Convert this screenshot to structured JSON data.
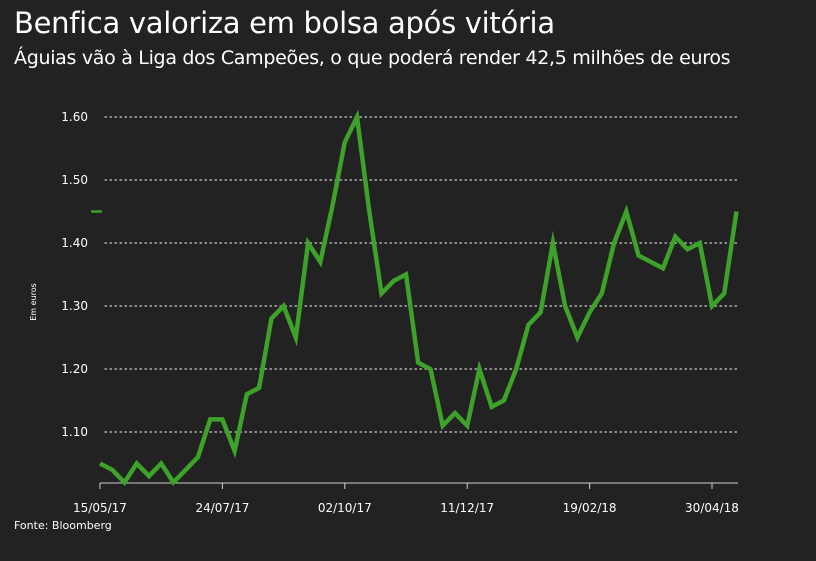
{
  "header": {
    "title": "Benfica valoriza em bolsa após vitória",
    "subtitle": "Águias vão à Liga dos Campeões, o que poderá render 42,5 milhões de euros"
  },
  "footer": {
    "source": "Fonte: Bloomberg"
  },
  "colors": {
    "background": "#222222",
    "line": "#3ea12a",
    "grid": "#cfcfcf",
    "text": "#ffffff"
  },
  "chart_data": {
    "type": "line",
    "title": "Benfica valoriza em bolsa após vitória",
    "subtitle": "Águias vão à Liga dos Campeões, o que poderá render 42,5 milhões de euros",
    "xlabel": "",
    "ylabel": "Em euros",
    "ylim": [
      1.02,
      1.62
    ],
    "yticks": [
      {
        "value": 1.1,
        "label": "1.10"
      },
      {
        "value": 1.2,
        "label": "1.20"
      },
      {
        "value": 1.3,
        "label": "1.30"
      },
      {
        "value": 1.4,
        "label": "1.40"
      },
      {
        "value": 1.5,
        "label": "1.50"
      },
      {
        "value": 1.6,
        "label": "1.60"
      }
    ],
    "xticks": [
      {
        "date": "2017-05-15",
        "label": "15/05/17"
      },
      {
        "date": "2017-07-24",
        "label": "24/07/17"
      },
      {
        "date": "2017-10-02",
        "label": "02/10/17"
      },
      {
        "date": "2017-12-11",
        "label": "11/12/17"
      },
      {
        "date": "2018-02-19",
        "label": "19/02/18"
      },
      {
        "date": "2018-04-30",
        "label": "30/04/18"
      }
    ],
    "grid": true,
    "legend": "none",
    "last_value_marker": 1.45,
    "series": [
      {
        "x": [
          "2017-05-15",
          "2017-05-22",
          "2017-05-29",
          "2017-06-05",
          "2017-06-12",
          "2017-06-19",
          "2017-06-26",
          "2017-07-03",
          "2017-07-10",
          "2017-07-17",
          "2017-07-24",
          "2017-07-31",
          "2017-08-07",
          "2017-08-14",
          "2017-08-21",
          "2017-08-28",
          "2017-09-04",
          "2017-09-11",
          "2017-09-18",
          "2017-09-25",
          "2017-10-02",
          "2017-10-09",
          "2017-10-16",
          "2017-10-23",
          "2017-10-30",
          "2017-11-06",
          "2017-11-13",
          "2017-11-20",
          "2017-11-27",
          "2017-12-04",
          "2017-12-11",
          "2017-12-18",
          "2017-12-25",
          "2018-01-01",
          "2018-01-08",
          "2018-01-15",
          "2018-01-22",
          "2018-01-29",
          "2018-02-05",
          "2018-02-12",
          "2018-02-19",
          "2018-02-26",
          "2018-03-05",
          "2018-03-12",
          "2018-03-19",
          "2018-03-26",
          "2018-04-02",
          "2018-04-09",
          "2018-04-16",
          "2018-04-23",
          "2018-04-30"
        ],
        "y": [
          1.05,
          1.04,
          1.02,
          1.05,
          1.03,
          1.05,
          1.02,
          1.04,
          1.06,
          1.12,
          1.12,
          1.07,
          1.16,
          1.17,
          1.28,
          1.3,
          1.25,
          1.4,
          1.37,
          1.46,
          1.56,
          1.6,
          1.45,
          1.32,
          1.34,
          1.35,
          1.21,
          1.2,
          1.11,
          1.13,
          1.11,
          1.2,
          1.14,
          1.15,
          1.2,
          1.27,
          1.29,
          1.4,
          1.3,
          1.25,
          1.29,
          1.32,
          1.4,
          1.45,
          1.38,
          1.37,
          1.36,
          1.41,
          1.39,
          1.4,
          1.3
        ],
        "final_points": {
          "x": [
            "2018-05-07",
            "2018-05-14"
          ],
          "y": [
            1.32,
            1.45
          ]
        }
      }
    ]
  }
}
